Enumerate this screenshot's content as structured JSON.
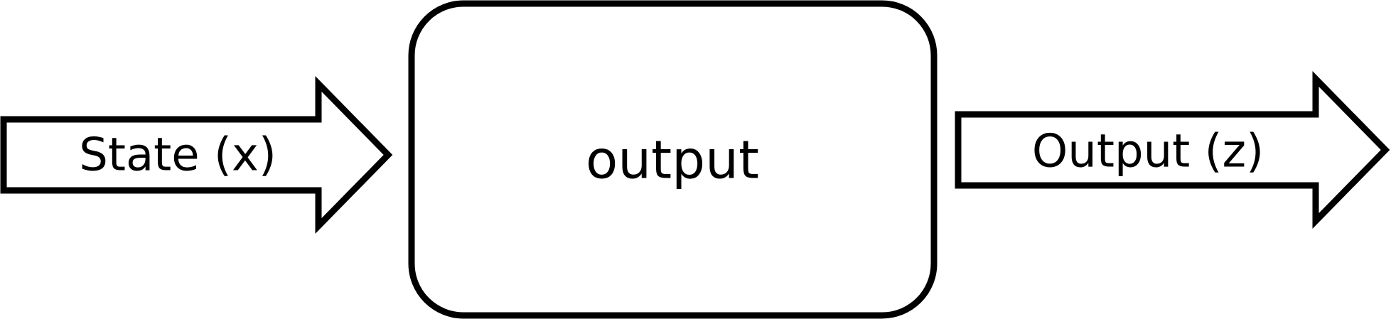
{
  "diagram": {
    "input_arrow": {
      "label": "State (x)"
    },
    "process_box": {
      "label": "output"
    },
    "output_arrow": {
      "label": "Output (z)"
    }
  },
  "colors": {
    "stroke": "#000000",
    "fill": "#ffffff"
  }
}
